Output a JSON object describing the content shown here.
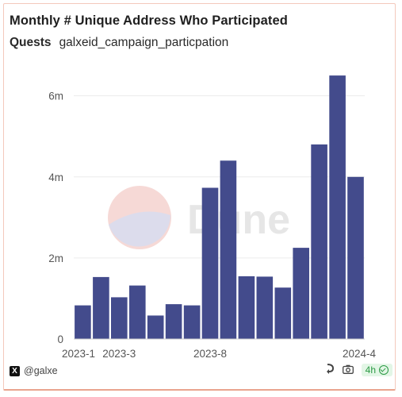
{
  "header": {
    "title": "Monthly # Unique Address Who Participated",
    "subtitle_label": "Quests",
    "subtitle_value": "galxeid_campaign_particpation"
  },
  "footer": {
    "handle": "@galxe",
    "x_logo_text": "X",
    "refresh_label": "4h",
    "icons": [
      "share-icon",
      "camera-icon",
      "check-circle-icon"
    ]
  },
  "watermark": {
    "text": "Dune"
  },
  "colors": {
    "bar": "#434b8c",
    "border": "#f3c9bc",
    "badge_text": "#2c9a45"
  },
  "chart_data": {
    "type": "bar",
    "categories": [
      "2023-1",
      "2023-2",
      "2023-3",
      "2023-4",
      "2023-5",
      "2023-6",
      "2023-7",
      "2023-8",
      "2023-9",
      "2023-10",
      "2023-11",
      "2023-12",
      "2024-1",
      "2024-2",
      "2024-3",
      "2024-4"
    ],
    "x_tick_labels": [
      "2023-1",
      "2023-3",
      "2023-8",
      "2024-4"
    ],
    "values": [
      830000,
      1530000,
      1030000,
      1320000,
      580000,
      860000,
      830000,
      3730000,
      4400000,
      1550000,
      1540000,
      1270000,
      2250000,
      4800000,
      6500000,
      4000000
    ],
    "y_ticks": [
      0,
      2000000,
      4000000,
      6000000
    ],
    "y_tick_labels": [
      "0",
      "2m",
      "4m",
      "6m"
    ],
    "ylim": [
      0,
      6600000
    ],
    "title": "Monthly # Unique Address Who Participated",
    "xlabel": "",
    "ylabel": "",
    "grid": true,
    "legend": "none"
  }
}
